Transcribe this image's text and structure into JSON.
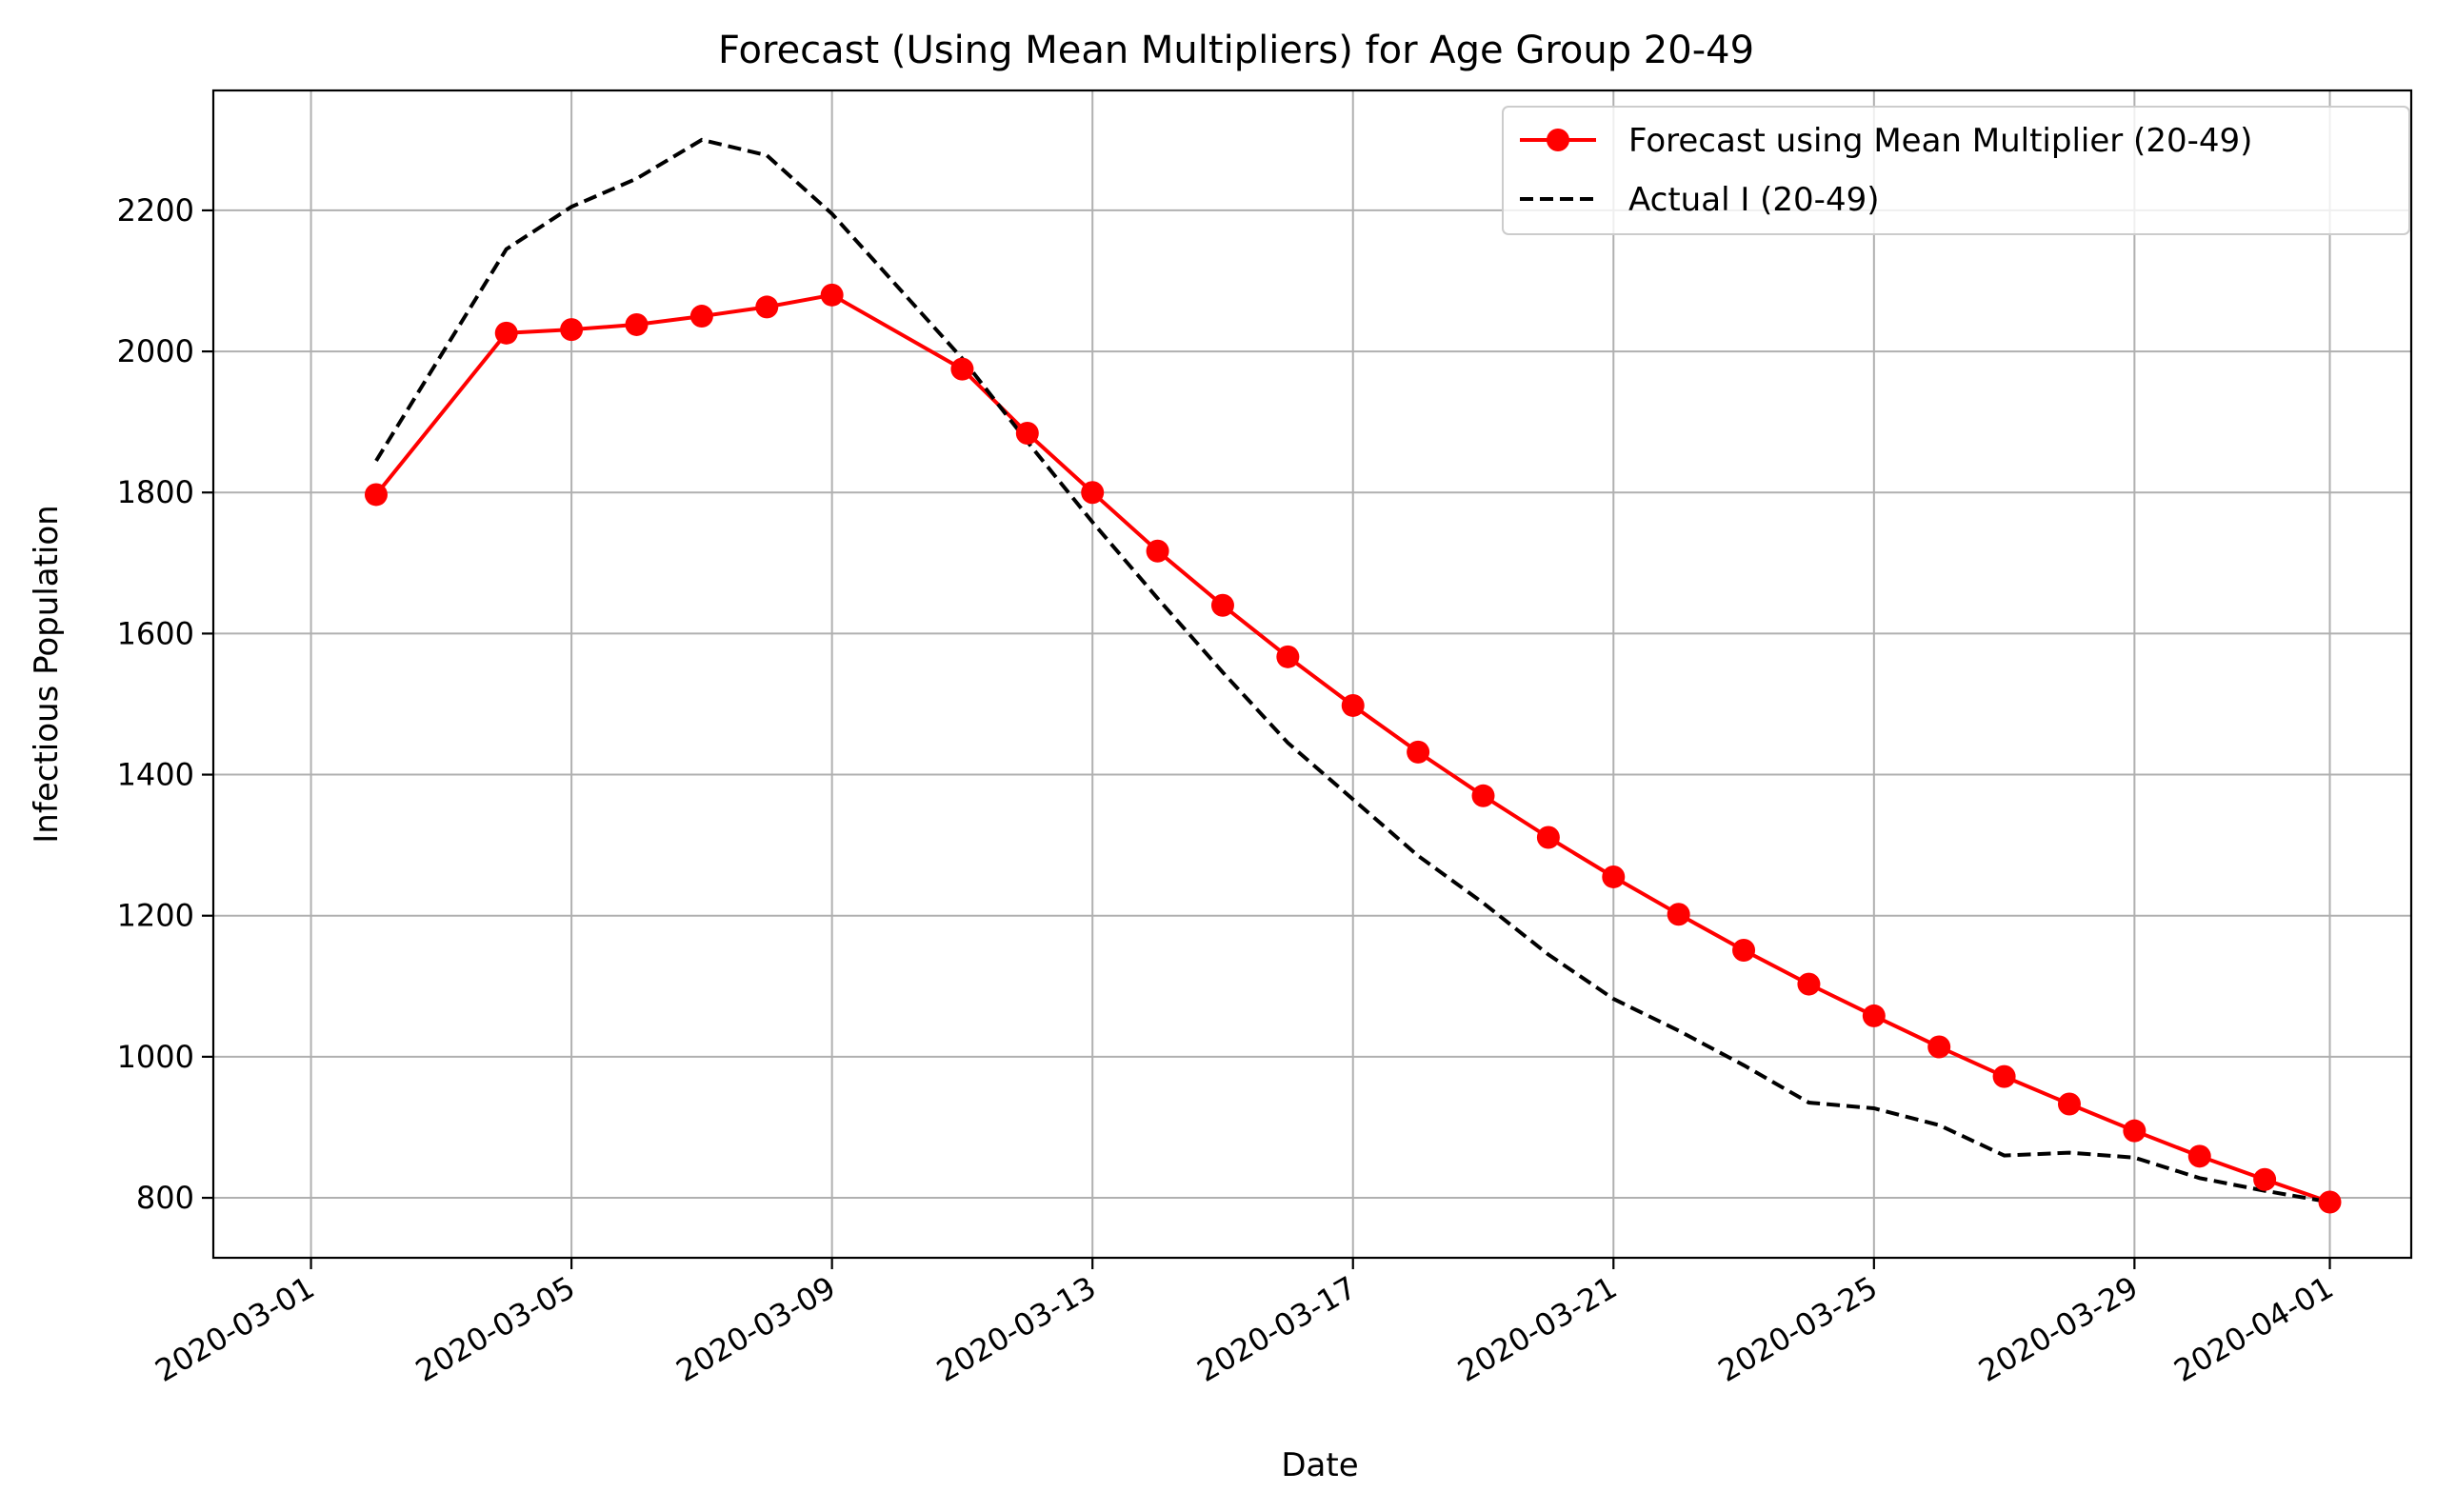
{
  "chart_data": {
    "type": "line",
    "title": "Forecast (Using Mean Multipliers) for Age Group 20-49",
    "xlabel": "Date",
    "ylabel": "Infectious Population",
    "x_ticks": [
      "2020-03-01",
      "2020-03-05",
      "2020-03-09",
      "2020-03-13",
      "2020-03-17",
      "2020-03-21",
      "2020-03-25",
      "2020-03-29",
      "2020-04-01"
    ],
    "y_ticks": [
      800,
      1000,
      1200,
      1400,
      1600,
      1800,
      2000,
      2200
    ],
    "xlim": [
      "2020-02-28T12:00",
      "2020-04-02T06:00"
    ],
    "ylim": [
      715,
      2370
    ],
    "grid": true,
    "legend_position": "top-right",
    "series": [
      {
        "name": "Forecast using Mean Multiplier (20-49)",
        "color": "#ff0000",
        "style": "solid-with-markers",
        "points": [
          [
            "2020-03-02",
            1797
          ],
          [
            "2020-03-04",
            2026
          ],
          [
            "2020-03-05",
            2031
          ],
          [
            "2020-03-06",
            2038
          ],
          [
            "2020-03-07",
            2050
          ],
          [
            "2020-03-08",
            2063
          ],
          [
            "2020-03-09",
            2080
          ],
          [
            "2020-03-11",
            1975
          ],
          [
            "2020-03-12",
            1884
          ],
          [
            "2020-03-13",
            1800
          ],
          [
            "2020-03-14",
            1717
          ],
          [
            "2020-03-15",
            1640
          ],
          [
            "2020-03-16",
            1567
          ],
          [
            "2020-03-17",
            1498
          ],
          [
            "2020-03-18",
            1432
          ],
          [
            "2020-03-19",
            1370
          ],
          [
            "2020-03-20",
            1311
          ],
          [
            "2020-03-21",
            1255
          ],
          [
            "2020-03-22",
            1202
          ],
          [
            "2020-03-23",
            1151
          ],
          [
            "2020-03-24",
            1103
          ],
          [
            "2020-03-25",
            1058
          ],
          [
            "2020-03-26",
            1014
          ],
          [
            "2020-03-27",
            972
          ],
          [
            "2020-03-28",
            933
          ],
          [
            "2020-03-29",
            895
          ],
          [
            "2020-03-30",
            859
          ],
          [
            "2020-03-31",
            826
          ],
          [
            "2020-04-01",
            794
          ]
        ]
      },
      {
        "name": "Actual I (20-49)",
        "color": "#000000",
        "style": "dashed",
        "points": [
          [
            "2020-03-02",
            1845
          ],
          [
            "2020-03-04",
            2145
          ],
          [
            "2020-03-05",
            2205
          ],
          [
            "2020-03-06",
            2245
          ],
          [
            "2020-03-07",
            2300
          ],
          [
            "2020-03-08",
            2278
          ],
          [
            "2020-03-09",
            2195
          ],
          [
            "2020-03-11",
            1990
          ],
          [
            "2020-03-12",
            1872
          ],
          [
            "2020-03-13",
            1758
          ],
          [
            "2020-03-14",
            1650
          ],
          [
            "2020-03-15",
            1545
          ],
          [
            "2020-03-16",
            1445
          ],
          [
            "2020-03-17",
            1365
          ],
          [
            "2020-03-18",
            1285
          ],
          [
            "2020-03-19",
            1218
          ],
          [
            "2020-03-20",
            1145
          ],
          [
            "2020-03-21",
            1082
          ],
          [
            "2020-03-22",
            1037
          ],
          [
            "2020-03-23",
            988
          ],
          [
            "2020-03-24",
            935
          ],
          [
            "2020-03-25",
            927
          ],
          [
            "2020-03-26",
            903
          ],
          [
            "2020-03-27",
            860
          ],
          [
            "2020-03-28",
            864
          ],
          [
            "2020-03-29",
            857
          ],
          [
            "2020-03-30",
            828
          ],
          [
            "2020-03-31",
            810
          ],
          [
            "2020-04-01",
            794
          ]
        ]
      }
    ]
  }
}
